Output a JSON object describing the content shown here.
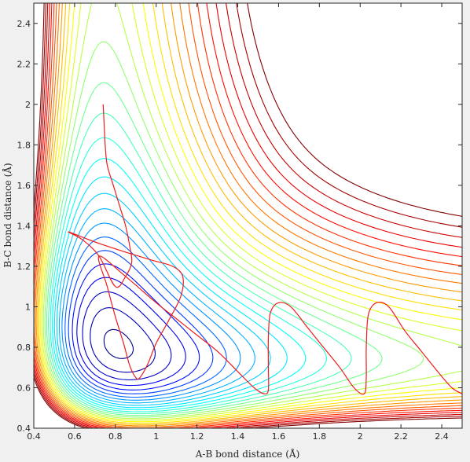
{
  "chart_data": {
    "type": "contour",
    "title": "",
    "xlabel": "A-B bond distance (Å)",
    "ylabel": "B-C bond distance (Å)",
    "xlim": [
      0.4,
      2.5
    ],
    "ylim": [
      0.4,
      2.5
    ],
    "xticks": [
      0.4,
      0.6,
      0.8,
      1.0,
      1.2,
      1.4,
      1.6,
      1.8,
      2.0,
      2.2,
      2.4
    ],
    "xtick_labels": [
      "0.4",
      "0.6",
      "0.8",
      "1",
      "1.2",
      "1.4",
      "1.6",
      "1.8",
      "2",
      "2.2",
      "2.4"
    ],
    "yticks": [
      0.4,
      0.6,
      0.8,
      1.0,
      1.2,
      1.4,
      1.6,
      1.8,
      2.0,
      2.2,
      2.4
    ],
    "ytick_labels": [
      "0.4",
      "0.6",
      "0.8",
      "1",
      "1.2",
      "1.4",
      "1.6",
      "1.8",
      "2",
      "2.2",
      "2.4"
    ],
    "grid": false,
    "colormap": "jet",
    "colormap_stops": [
      "#00008f",
      "#0000ff",
      "#00a0ff",
      "#00ffff",
      "#80ff80",
      "#ffff00",
      "#ff8000",
      "#ff0000",
      "#800000"
    ],
    "contour_levels": 30,
    "contour_asymptotes_bc": [
      0.58,
      0.6,
      0.62,
      0.66,
      0.72,
      0.8,
      0.88,
      0.95,
      1.0,
      1.05,
      1.09,
      1.12,
      1.16,
      1.2,
      1.24,
      1.28,
      1.32,
      1.36,
      1.41,
      1.47,
      1.53,
      1.6,
      1.69,
      1.79
    ],
    "trajectory_color": "#ee1c1c",
    "trajectory": [
      [
        0.74,
        2.0
      ],
      [
        0.745,
        1.9
      ],
      [
        0.75,
        1.8
      ],
      [
        0.76,
        1.7
      ],
      [
        0.79,
        1.6
      ],
      [
        0.82,
        1.5
      ],
      [
        0.85,
        1.4
      ],
      [
        0.87,
        1.3
      ],
      [
        0.88,
        1.22
      ],
      [
        0.85,
        1.15
      ],
      [
        0.8,
        1.1
      ],
      [
        0.72,
        1.25
      ],
      [
        0.64,
        1.33
      ],
      [
        0.57,
        1.37
      ],
      [
        0.7,
        1.32
      ],
      [
        0.85,
        1.27
      ],
      [
        0.98,
        1.23
      ],
      [
        1.08,
        1.2
      ],
      [
        1.13,
        1.15
      ],
      [
        1.12,
        1.05
      ],
      [
        1.06,
        0.93
      ],
      [
        1.0,
        0.82
      ],
      [
        0.96,
        0.72
      ],
      [
        0.92,
        0.65
      ],
      [
        0.9,
        0.65
      ],
      [
        0.87,
        0.71
      ],
      [
        0.84,
        0.82
      ],
      [
        0.8,
        0.95
      ],
      [
        0.76,
        1.1
      ],
      [
        0.72,
        1.25
      ],
      [
        0.85,
        1.15
      ],
      [
        1.0,
        1.02
      ],
      [
        1.1,
        0.94
      ],
      [
        1.2,
        0.86
      ],
      [
        1.3,
        0.78
      ],
      [
        1.4,
        0.68
      ],
      [
        1.48,
        0.6
      ],
      [
        1.53,
        0.57
      ],
      [
        1.55,
        0.59
      ],
      [
        1.55,
        0.7
      ],
      [
        1.55,
        0.85
      ],
      [
        1.56,
        0.97
      ],
      [
        1.6,
        1.02
      ],
      [
        1.66,
        1.0
      ],
      [
        1.74,
        0.9
      ],
      [
        1.82,
        0.8
      ],
      [
        1.9,
        0.7
      ],
      [
        1.97,
        0.6
      ],
      [
        2.02,
        0.57
      ],
      [
        2.03,
        0.65
      ],
      [
        2.03,
        0.8
      ],
      [
        2.04,
        0.96
      ],
      [
        2.08,
        1.02
      ],
      [
        2.14,
        1.0
      ],
      [
        2.22,
        0.88
      ],
      [
        2.3,
        0.78
      ],
      [
        2.38,
        0.68
      ],
      [
        2.45,
        0.6
      ],
      [
        2.5,
        0.57
      ]
    ]
  }
}
